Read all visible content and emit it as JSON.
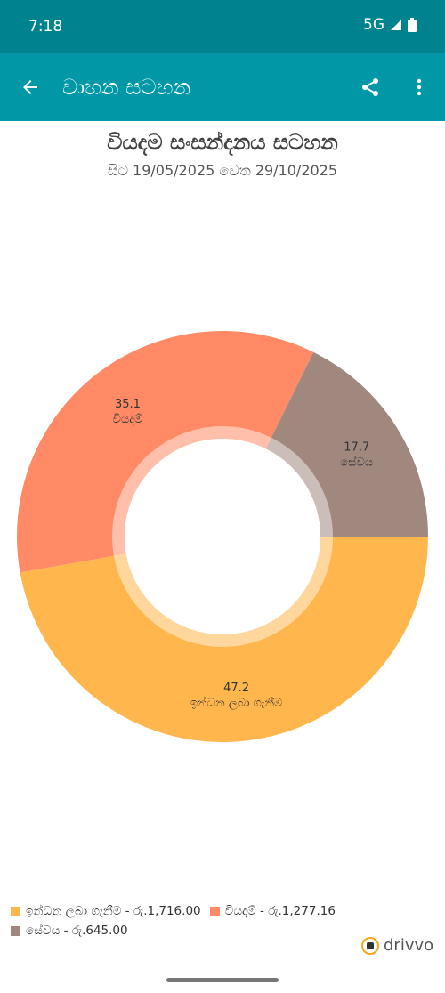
{
  "status": {
    "time": "7:18",
    "network": "5G"
  },
  "appbar": {
    "title": "වාහන සටහන"
  },
  "chart_data": {
    "type": "pie",
    "title": "වියදම සංසන්දනය සටහන",
    "subtitle": "සිට 19/05/2025 වෙත 29/10/2025",
    "slices": [
      {
        "label": "ඉන්ධන ලබා ගැනීම",
        "value": 47.2,
        "value_text": "47.2",
        "color": "#ffb74d",
        "legend_amount": "රු.1,716.00"
      },
      {
        "label": "වියදම්",
        "value": 35.1,
        "value_text": "35.1",
        "color": "#ff8a65",
        "legend_amount": "රු.1,277.16"
      },
      {
        "label": "සේවය",
        "value": 17.7,
        "value_text": "17.7",
        "color": "#a1887f",
        "legend_amount": "රු.645.00"
      }
    ],
    "legend_position": "bottom"
  },
  "brand": {
    "name": "drivvo"
  }
}
